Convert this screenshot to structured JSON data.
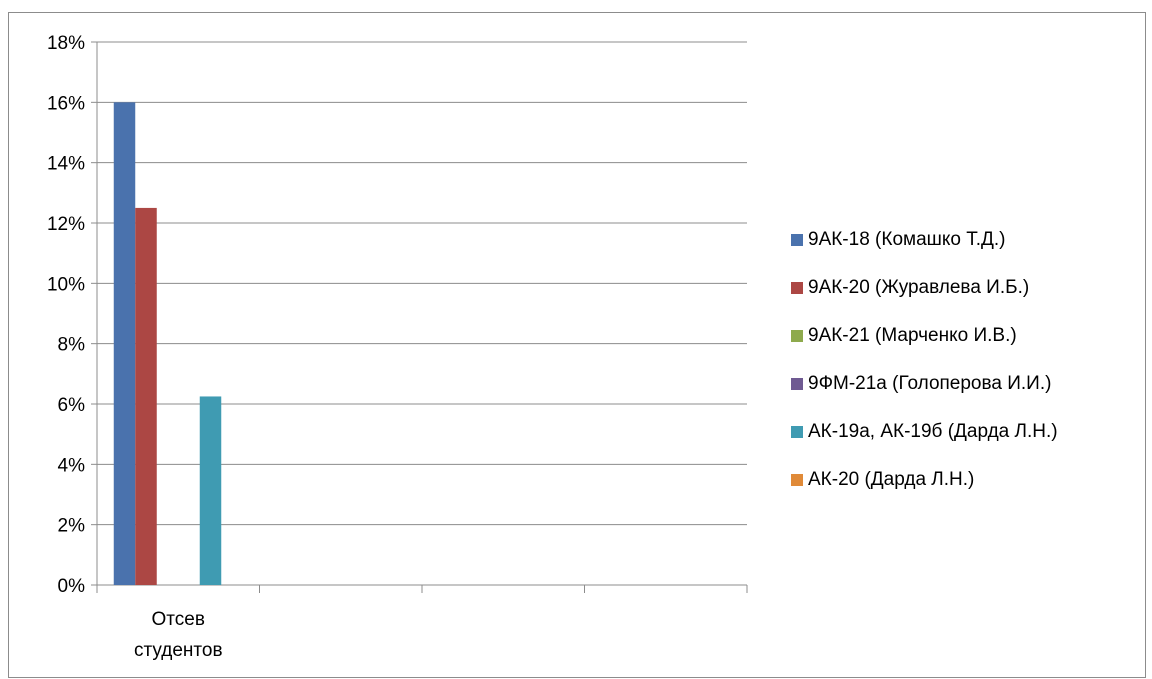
{
  "chart_data": {
    "type": "bar",
    "categories": [
      "Отсев студентов"
    ],
    "category_lines": [
      [
        "Отсев",
        "студентов"
      ]
    ],
    "series": [
      {
        "name": "9АК-18 (Комашко Т.Д.)",
        "color": "#4a72ad",
        "values": [
          0.16
        ]
      },
      {
        "name": "9АК-20 (Журавлева И.Б.)",
        "color": "#ac4744",
        "values": [
          0.125
        ]
      },
      {
        "name": "9АК-21 (Марченко И.В.)",
        "color": "#8eaa4d",
        "values": [
          0
        ]
      },
      {
        "name": "9ФМ-21а (Голоперова И.И.)",
        "color": "#6f5a92",
        "values": [
          0
        ]
      },
      {
        "name": "АК-19а, АК-19б (Дарда Л.Н.)",
        "color": "#3f9bb2",
        "values": [
          0.0625
        ]
      },
      {
        "name": "АК-20 (Дарда Л.Н.)",
        "color": "#e08a38",
        "values": [
          0
        ]
      }
    ],
    "y_ticks": [
      "0%",
      "2%",
      "4%",
      "6%",
      "8%",
      "10%",
      "12%",
      "14%",
      "16%",
      "18%"
    ],
    "ylim": [
      0,
      0.18
    ],
    "x_slots": 4,
    "grid": true,
    "legend_position": "right",
    "title": "",
    "xlabel": "",
    "ylabel": ""
  }
}
